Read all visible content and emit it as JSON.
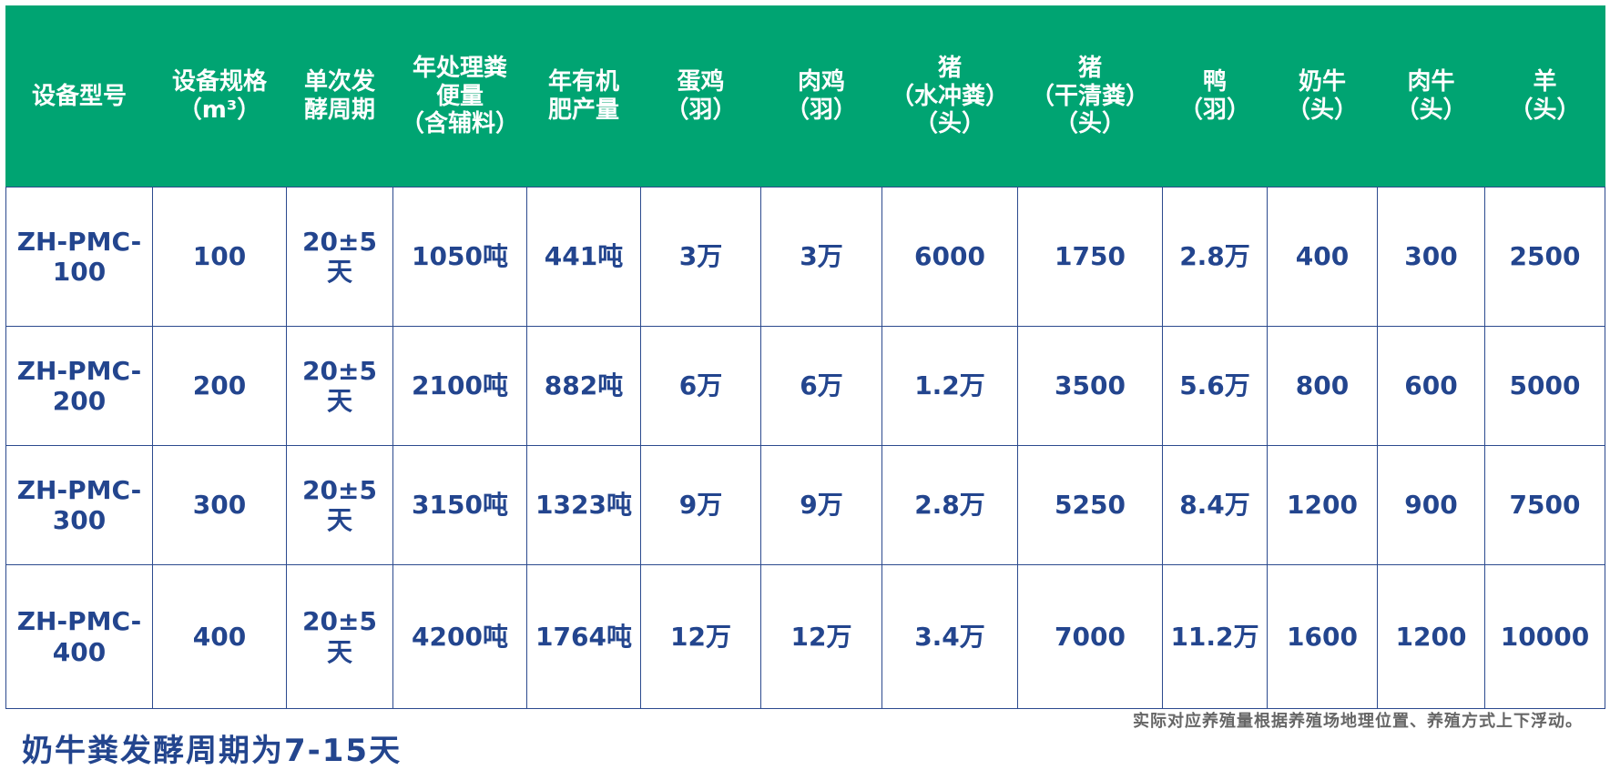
{
  "table": {
    "header": [
      "设备型号",
      "设备规格\n（m³）",
      "单次发\n酵周期",
      "年处理粪\n便量\n（含辅料）",
      "年有机\n肥产量",
      "蛋鸡\n（羽）",
      "肉鸡\n（羽）",
      "猪\n（水冲粪）\n（头）",
      "猪\n（干清粪）\n（头）",
      "鸭\n（羽）",
      "奶牛\n（头）",
      "肉牛\n（头）",
      "羊\n（头）"
    ],
    "rows": [
      [
        "ZH-PMC-100",
        "100",
        "20±5天",
        "1050吨",
        "441吨",
        "3万",
        "3万",
        "6000",
        "1750",
        "2.8万",
        "400",
        "300",
        "2500"
      ],
      [
        "ZH-PMC-200",
        "200",
        "20±5天",
        "2100吨",
        "882吨",
        "6万",
        "6万",
        "1.2万",
        "3500",
        "5.6万",
        "800",
        "600",
        "5000"
      ],
      [
        "ZH-PMC-300",
        "300",
        "20±5天",
        "3150吨",
        "1323吨",
        "9万",
        "9万",
        "2.8万",
        "5250",
        "8.4万",
        "1200",
        "900",
        "7500"
      ],
      [
        "ZH-PMC-400",
        "400",
        "20±5天",
        "4200吨",
        "1764吨",
        "12万",
        "12万",
        "3.4万",
        "7000",
        "11.2万",
        "1600",
        "1200",
        "10000"
      ]
    ]
  },
  "footnote": "实际对应养殖量根据养殖场地理位置、养殖方式上下浮动。",
  "note": "奶牛粪发酵周期为7-15天"
}
